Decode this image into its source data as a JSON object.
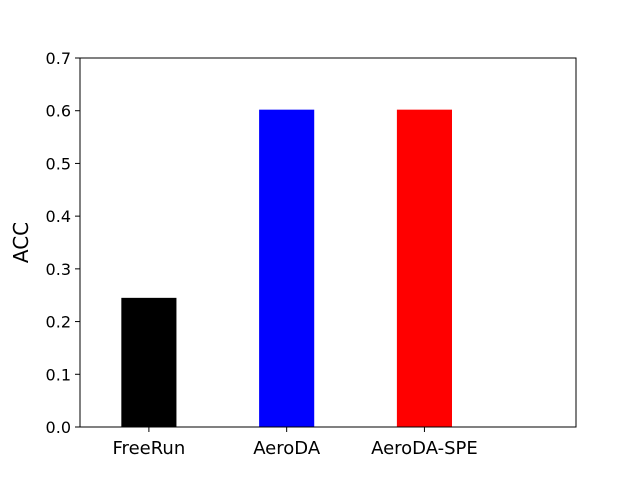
{
  "chart_data": {
    "type": "bar",
    "categories": [
      "FreeRun",
      "AeroDA",
      "AeroDA-SPE"
    ],
    "values": [
      0.245,
      0.602,
      0.602
    ],
    "colors": [
      "#000000",
      "#0000ff",
      "#ff0000"
    ],
    "title": "",
    "xlabel": "",
    "ylabel": "ACC",
    "ylim": [
      0,
      0.7
    ],
    "yticks": [
      "0.0",
      "0.1",
      "0.2",
      "0.3",
      "0.4",
      "0.5",
      "0.6",
      "0.7"
    ],
    "grid": false,
    "legend": "none"
  }
}
